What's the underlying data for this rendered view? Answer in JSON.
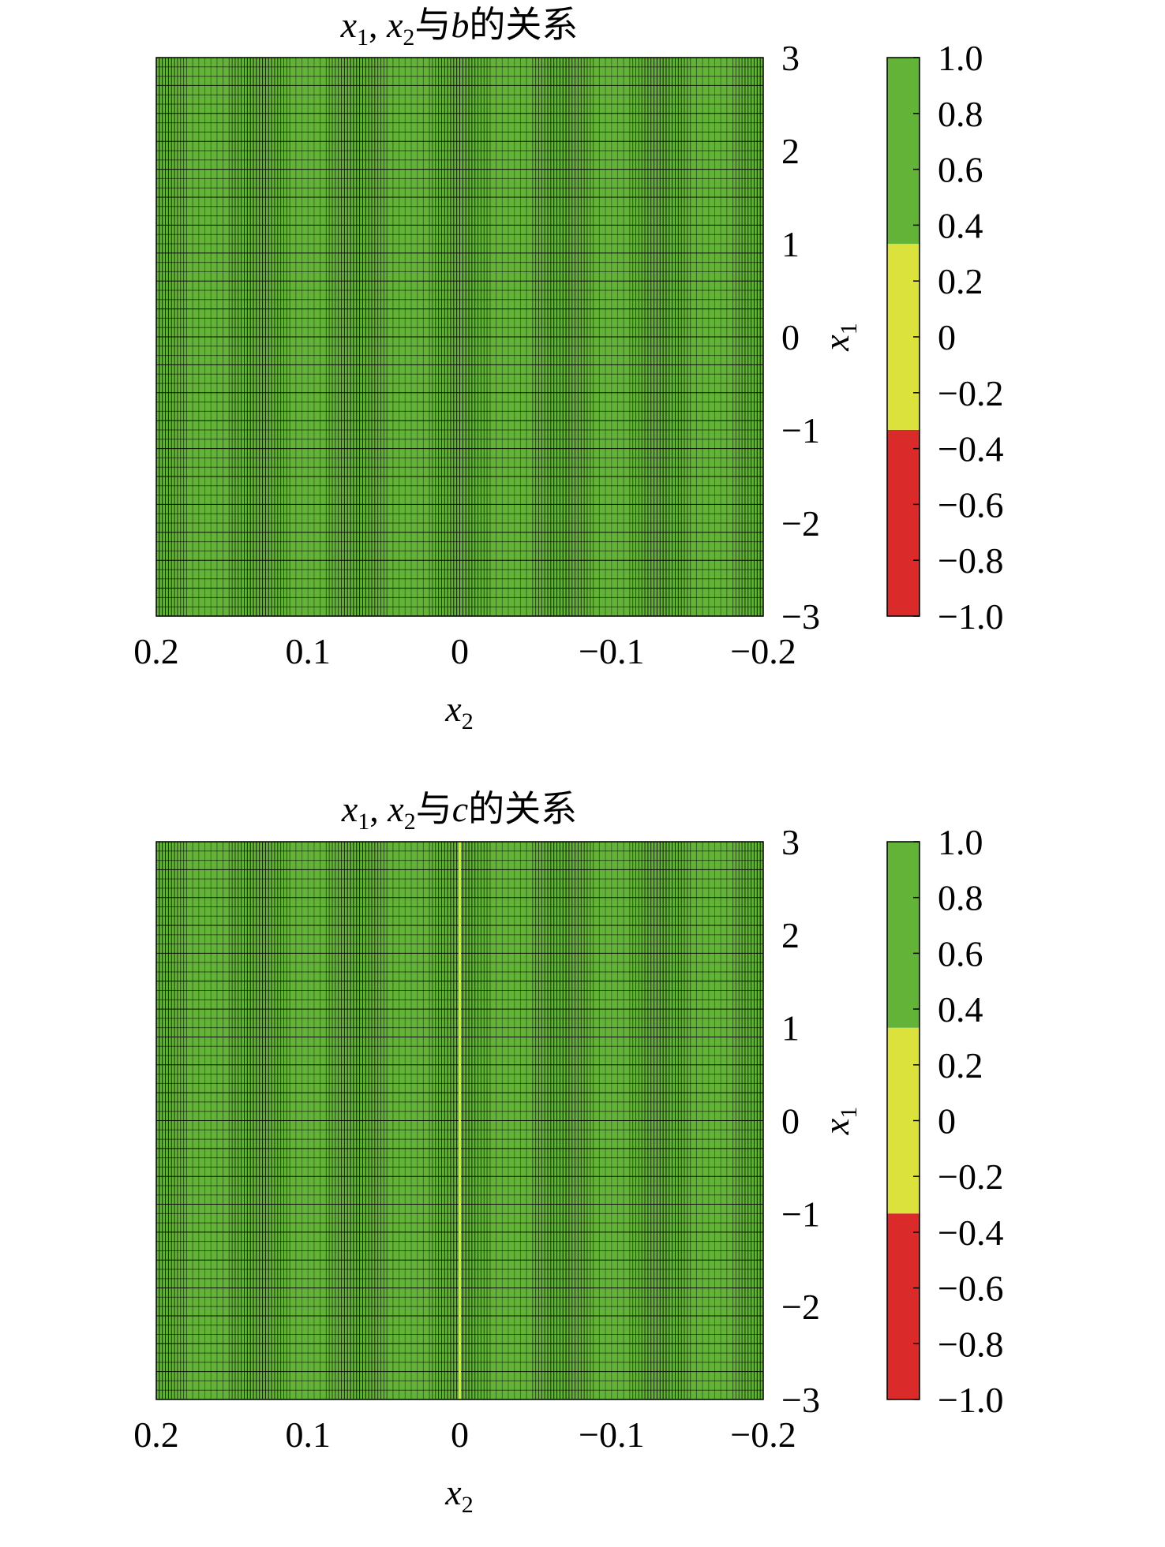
{
  "colors": {
    "green": "#63b338",
    "yellow": "#dbe23c",
    "red": "#db2a2a",
    "mesh": "#000000",
    "text": "#231f20"
  },
  "chart_data": [
    {
      "type": "heatmap",
      "title": {
        "prefix": "x",
        "prefix_sub": "1",
        "sep": ", ",
        "mid": "x",
        "mid_sub": "2",
        "text": "与",
        "var": "b",
        "suffix": "的关系"
      },
      "xlabel": {
        "text": "x",
        "sub": "2"
      },
      "ylabel": {
        "text": "x",
        "sub": "1"
      },
      "xlim": [
        0.2,
        -0.2
      ],
      "ylim": [
        -3,
        3
      ],
      "x_reversed": true,
      "x_ticks": [
        "0.2",
        "0.1",
        "0",
        "−0.1",
        "−0.2"
      ],
      "x_tick_values": [
        0.2,
        0.1,
        0,
        -0.1,
        -0.2
      ],
      "y_ticks": [
        "3",
        "2",
        "1",
        "0",
        "−1",
        "−2",
        "−3"
      ],
      "y_tick_values": [
        3,
        2,
        1,
        0,
        -1,
        -2,
        -3
      ],
      "y_axis_position": "right",
      "grid": true,
      "field_value": 1,
      "special_columns": [],
      "colorbar": {
        "ticks": [
          "1.0",
          "0.8",
          "0.6",
          "0.4",
          "0.2",
          "0",
          "−0.2",
          "−0.4",
          "−0.6",
          "−0.8",
          "−1.0"
        ],
        "tick_values": [
          1.0,
          0.8,
          0.6,
          0.4,
          0.2,
          0,
          -0.2,
          -0.4,
          -0.6,
          -0.8,
          -1.0
        ],
        "range": [
          -1,
          1
        ],
        "bands": [
          {
            "from": -1.0,
            "to": -0.333,
            "color": "#db2a2a"
          },
          {
            "from": -0.333,
            "to": 0.333,
            "color": "#dbe23c"
          },
          {
            "from": 0.333,
            "to": 1.0,
            "color": "#63b338"
          }
        ]
      }
    },
    {
      "type": "heatmap",
      "title": {
        "prefix": "x",
        "prefix_sub": "1",
        "sep": ", ",
        "mid": "x",
        "mid_sub": "2",
        "text": "与",
        "var": "c",
        "suffix": "的关系"
      },
      "xlabel": {
        "text": "x",
        "sub": "2"
      },
      "ylabel": {
        "text": "x",
        "sub": "1"
      },
      "xlim": [
        0.2,
        -0.2
      ],
      "ylim": [
        -3,
        3
      ],
      "x_reversed": true,
      "x_ticks": [
        "0.2",
        "0.1",
        "0",
        "−0.1",
        "−0.2"
      ],
      "x_tick_values": [
        0.2,
        0.1,
        0,
        -0.1,
        -0.2
      ],
      "y_ticks": [
        "3",
        "2",
        "1",
        "0",
        "−1",
        "−2",
        "−3"
      ],
      "y_tick_values": [
        3,
        2,
        1,
        0,
        -1,
        -2,
        -3
      ],
      "y_axis_position": "right",
      "grid": true,
      "field_value": 1,
      "special_columns": [
        {
          "x": 0,
          "value": 0,
          "color": "#dbe23c"
        }
      ],
      "colorbar": {
        "ticks": [
          "1.0",
          "0.8",
          "0.6",
          "0.4",
          "0.2",
          "0",
          "−0.2",
          "−0.4",
          "−0.6",
          "−0.8",
          "−1.0"
        ],
        "tick_values": [
          1.0,
          0.8,
          0.6,
          0.4,
          0.2,
          0,
          -0.2,
          -0.4,
          -0.6,
          -0.8,
          -1.0
        ],
        "range": [
          -1,
          1
        ],
        "bands": [
          {
            "from": -1.0,
            "to": -0.333,
            "color": "#db2a2a"
          },
          {
            "from": -0.333,
            "to": 0.333,
            "color": "#dbe23c"
          },
          {
            "from": 0.333,
            "to": 1.0,
            "color": "#63b338"
          }
        ]
      }
    }
  ]
}
